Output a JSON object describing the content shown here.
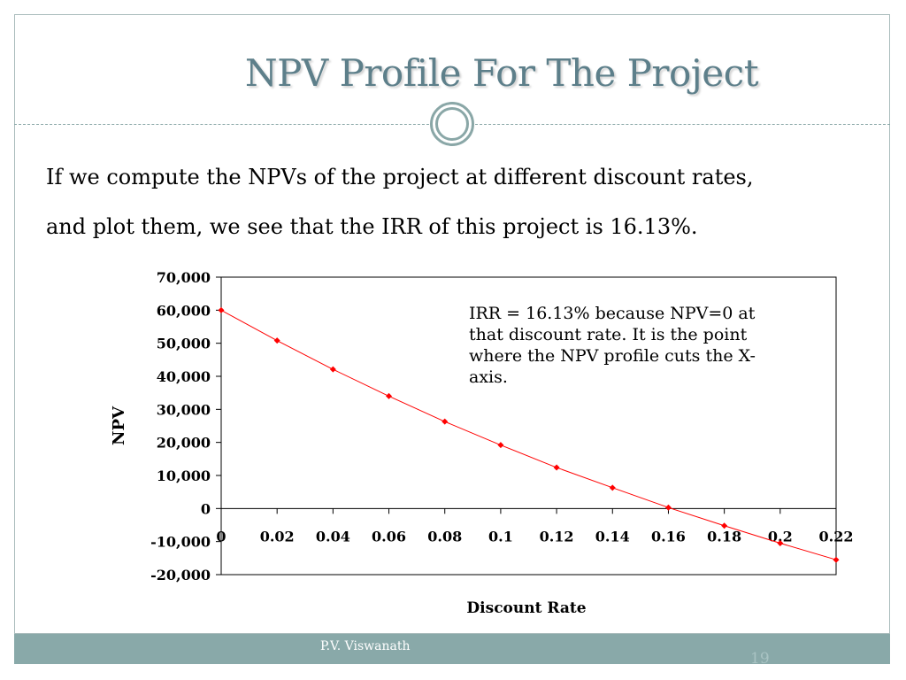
{
  "slide": {
    "title": "NPV Profile For The Project",
    "body_line1": "If we compute the NPVs of the project at different discount rates,",
    "body_line2": "and plot them, we see that the IRR of this project is 16.13%.",
    "annotation": "IRR = 16.13% because NPV=0 at\nthat discount rate.  It is the point\nwhere the NPV profile cuts the X-\naxis.",
    "author": "P.V. Viswanath",
    "page_number": "19",
    "colors": {
      "title": "#5d7f8a",
      "accent": "#89a9a9",
      "series": "#ff0000"
    }
  },
  "chart_data": {
    "type": "line",
    "xlabel": "Discount Rate",
    "ylabel": "NPV",
    "xlim": [
      0,
      0.22
    ],
    "ylim": [
      -20000,
      70000
    ],
    "x_ticks": [
      "0",
      "0.02",
      "0.04",
      "0.06",
      "0.08",
      "0.1",
      "0.12",
      "0.14",
      "0.16",
      "0.18",
      "0.2",
      "0.22"
    ],
    "y_ticks": [
      "70,000",
      "60,000",
      "50,000",
      "40,000",
      "30,000",
      "20,000",
      "10,000",
      "0",
      "-10,000",
      "-20,000"
    ],
    "grid": false,
    "series": [
      {
        "x": [
          0,
          0.02,
          0.04,
          0.06,
          0.08,
          0.1,
          0.12,
          0.14,
          0.16,
          0.18,
          0.2,
          0.22
        ],
        "values": [
          60000,
          50800,
          42100,
          34000,
          26300,
          19200,
          12400,
          6300,
          300,
          -5200,
          -10500,
          -15500
        ]
      }
    ]
  }
}
